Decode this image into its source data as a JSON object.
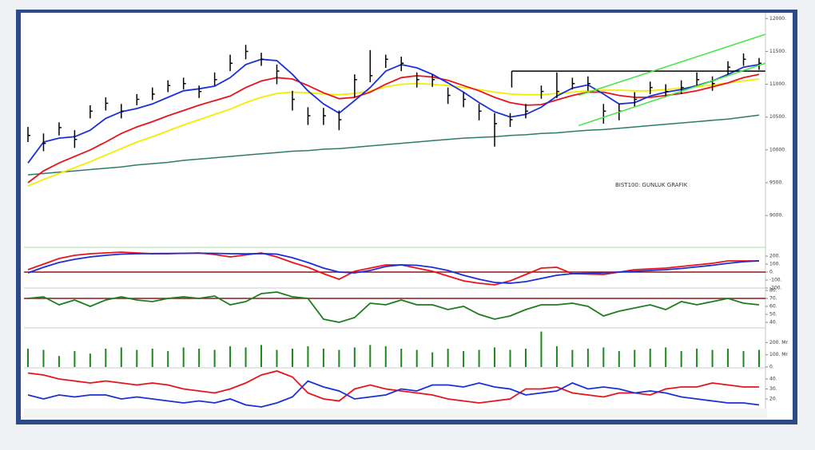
{
  "chart_data": [
    {
      "type": "ohlc",
      "annotation": "BIST100: GUNLUK GRAFIK",
      "ylim": [
        8540,
        12040
      ],
      "yticks": [
        {
          "value": 12000,
          "label": "12000."
        },
        {
          "value": 11500,
          "label": "11500."
        },
        {
          "value": 11000,
          "label": "11000."
        },
        {
          "value": 10500,
          "label": "10500."
        },
        {
          "value": 10000,
          "label": "10000."
        },
        {
          "value": 9500,
          "label": "9500."
        },
        {
          "value": 9000,
          "label": "9000."
        }
      ],
      "color": "#000000",
      "high": [
        10350,
        10250,
        10420,
        10300,
        10680,
        10800,
        10700,
        10850,
        10950,
        11060,
        11100,
        10980,
        11180,
        11450,
        11600,
        11480,
        11300,
        10900,
        10650,
        10640,
        10600,
        11150,
        11520,
        11450,
        11420,
        11180,
        11150,
        10950,
        10880,
        10700,
        10560,
        10560,
        10700,
        10980,
        11180,
        11100,
        11120,
        10700,
        10700,
        10880,
        11040,
        11000,
        11060,
        11180,
        11120,
        11350,
        11470,
        11400
      ],
      "low": [
        10120,
        9980,
        10220,
        10030,
        10480,
        10600,
        10480,
        10680,
        10760,
        10880,
        10920,
        10790,
        10980,
        11200,
        11380,
        11280,
        11000,
        10600,
        10380,
        10380,
        10300,
        10800,
        11030,
        11250,
        11200,
        10950,
        10960,
        10700,
        10650,
        10450,
        10050,
        10350,
        10480,
        10780,
        10790,
        10920,
        10900,
        10400,
        10450,
        10650,
        10850,
        10800,
        10850,
        10980,
        10900,
        11150,
        11280,
        11220
      ],
      "close": [
        10220,
        10100,
        10340,
        10160,
        10590,
        10710,
        10590,
        10770,
        10850,
        10980,
        11010,
        10890,
        11070,
        11320,
        11500,
        11380,
        11200,
        10770,
        10520,
        10520,
        10460,
        11070,
        11130,
        11380,
        11320,
        11070,
        11070,
        10830,
        10770,
        10590,
        10400,
        10460,
        10590,
        10890,
        10890,
        11010,
        11010,
        10590,
        10590,
        10770,
        10950,
        10890,
        10950,
        11070,
        11010,
        11260,
        11380,
        11320
      ],
      "series": [
        {
          "color": "#2e7a6e",
          "values": [
            9620,
            9640,
            9660,
            9680,
            9700,
            9720,
            9740,
            9770,
            9790,
            9810,
            9840,
            9860,
            9880,
            9900,
            9920,
            9940,
            9960,
            9980,
            9990,
            10010,
            10020,
            10040,
            10060,
            10080,
            10100,
            10120,
            10140,
            10160,
            10180,
            10190,
            10200,
            10220,
            10230,
            10250,
            10260,
            10280,
            10300,
            10310,
            10330,
            10350,
            10370,
            10390,
            10410,
            10430,
            10450,
            10470,
            10500,
            10530
          ]
        },
        {
          "color": "#f2ee00",
          "values": [
            9450,
            9550,
            9640,
            9730,
            9820,
            9920,
            10020,
            10120,
            10200,
            10290,
            10380,
            10460,
            10540,
            10620,
            10720,
            10800,
            10860,
            10880,
            10870,
            10850,
            10840,
            10860,
            10900,
            10960,
            11000,
            11010,
            11000,
            10980,
            10950,
            10920,
            10880,
            10850,
            10840,
            10840,
            10860,
            10880,
            10900,
            10910,
            10910,
            10900,
            10900,
            10920,
            10940,
            10960,
            10990,
            11020,
            11050,
            11080
          ]
        },
        {
          "color": "#e8141c",
          "values": [
            9500,
            9680,
            9800,
            9900,
            10000,
            10120,
            10250,
            10350,
            10430,
            10520,
            10600,
            10680,
            10750,
            10820,
            10950,
            11050,
            11100,
            11080,
            10980,
            10870,
            10780,
            10800,
            10880,
            11000,
            11100,
            11130,
            11110,
            11060,
            10980,
            10900,
            10800,
            10720,
            10680,
            10690,
            10760,
            10830,
            10880,
            10880,
            10830,
            10800,
            10800,
            10830,
            10860,
            10900,
            10960,
            11020,
            11100,
            11150
          ]
        },
        {
          "color": "#1a2fd6",
          "values": [
            9800,
            10120,
            10180,
            10200,
            10300,
            10480,
            10580,
            10630,
            10700,
            10800,
            10900,
            10930,
            10970,
            11100,
            11300,
            11380,
            11360,
            11150,
            10900,
            10700,
            10560,
            10750,
            10950,
            11200,
            11300,
            11250,
            11150,
            11020,
            10880,
            10720,
            10580,
            10500,
            10540,
            10650,
            10820,
            10940,
            10990,
            10850,
            10700,
            10720,
            10820,
            10880,
            10920,
            10980,
            11050,
            11150,
            11260,
            11300
          ]
        }
      ],
      "trendlines": [
        {
          "color": "#000000",
          "x": [
            31.1,
            47.4
          ],
          "values": [
            11200,
            11200
          ]
        },
        {
          "color": "#000000",
          "x": [
            31.1,
            31.1
          ],
          "values": [
            11200,
            10950
          ]
        },
        {
          "color": "#3ee83e",
          "x": [
            35.4,
            47.4
          ],
          "values": [
            10830,
            11760
          ]
        },
        {
          "color": "#3ee83e",
          "x": [
            35.4,
            47.4
          ],
          "values": [
            10370,
            11320
          ]
        }
      ]
    },
    {
      "type": "line",
      "ylim": [
        -200,
        290
      ],
      "yticks": [
        {
          "value": 200,
          "label": "200."
        },
        {
          "value": 100,
          "label": "100."
        },
        {
          "value": 0,
          "label": "0."
        },
        {
          "value": -100,
          "label": "-100."
        },
        {
          "value": -200,
          "label": "-200."
        }
      ],
      "reference_line": {
        "value": 0,
        "color": "#8b1a1a"
      },
      "series": [
        {
          "color": "#e8141c",
          "values": [
            30,
            100,
            170,
            210,
            230,
            240,
            250,
            240,
            230,
            230,
            235,
            240,
            220,
            190,
            215,
            240,
            190,
            120,
            60,
            -20,
            -90,
            10,
            50,
            90,
            90,
            50,
            10,
            -50,
            -110,
            -140,
            -160,
            -110,
            -30,
            50,
            60,
            -20,
            -25,
            -30,
            0,
            30,
            40,
            50,
            70,
            90,
            110,
            140,
            140,
            140
          ]
        },
        {
          "color": "#1a2fd6",
          "values": [
            -10,
            60,
            120,
            160,
            190,
            210,
            225,
            230,
            232,
            233,
            235,
            236,
            235,
            230,
            228,
            232,
            225,
            180,
            120,
            50,
            0,
            -10,
            20,
            70,
            90,
            85,
            60,
            20,
            -40,
            -90,
            -130,
            -140,
            -120,
            -80,
            -40,
            -20,
            -15,
            -10,
            0,
            10,
            20,
            30,
            45,
            65,
            85,
            110,
            130,
            140
          ]
        }
      ]
    },
    {
      "type": "line",
      "ylim": [
        34,
        82
      ],
      "yticks": [
        {
          "value": 80,
          "label": "80."
        },
        {
          "value": 70,
          "label": "70."
        },
        {
          "value": 60,
          "label": "60."
        },
        {
          "value": 50,
          "label": "50."
        },
        {
          "value": 40,
          "label": "40."
        }
      ],
      "reference_line": {
        "value": 70,
        "color": "#8b1a1a"
      },
      "series": [
        {
          "color": "#1d7d1d",
          "values": [
            70,
            72,
            62,
            68,
            60,
            68,
            72,
            68,
            66,
            70,
            72,
            70,
            73,
            62,
            66,
            76,
            78,
            72,
            70,
            44,
            40,
            46,
            64,
            62,
            68,
            62,
            62,
            56,
            60,
            50,
            44,
            48,
            56,
            62,
            62,
            64,
            60,
            48,
            54,
            58,
            62,
            56,
            66,
            62,
            66,
            70,
            64,
            62
          ]
        }
      ]
    },
    {
      "type": "bar",
      "ylim": [
        0,
        313
      ],
      "color": "#1a8a1a",
      "yticks": [
        {
          "value": 200,
          "label": "200. Mr"
        },
        {
          "value": 100,
          "label": "100. Mr"
        },
        {
          "value": 0,
          "label": "0."
        }
      ],
      "values": [
        150,
        140,
        90,
        130,
        110,
        150,
        160,
        140,
        150,
        130,
        160,
        150,
        140,
        170,
        160,
        180,
        140,
        150,
        170,
        150,
        140,
        160,
        180,
        170,
        150,
        140,
        120,
        150,
        130,
        140,
        160,
        140,
        150,
        290,
        170,
        140,
        150,
        160,
        130,
        140,
        150,
        160,
        130,
        150,
        140,
        150,
        130,
        140
      ]
    },
    {
      "type": "line",
      "ylim": [
        10.4,
        50.4
      ],
      "yticks": [
        {
          "value": 40,
          "label": "40."
        },
        {
          "value": 30,
          "label": "30."
        },
        {
          "value": 20,
          "label": "20."
        }
      ],
      "series": [
        {
          "color": "#e8141c",
          "values": [
            46,
            44,
            40,
            38,
            36,
            38,
            36,
            34,
            36,
            34,
            30,
            28,
            26,
            30,
            36,
            44,
            48,
            42,
            26,
            20,
            18,
            30,
            34,
            30,
            28,
            26,
            24,
            20,
            18,
            16,
            18,
            20,
            30,
            30,
            32,
            26,
            24,
            22,
            26,
            26,
            24,
            30,
            32,
            32,
            36,
            34,
            32,
            32
          ]
        },
        {
          "color": "#1a2fd6",
          "values": [
            24,
            20,
            24,
            22,
            24,
            24,
            20,
            22,
            20,
            18,
            16,
            18,
            16,
            20,
            14,
            12,
            16,
            22,
            38,
            32,
            28,
            20,
            22,
            24,
            30,
            28,
            34,
            34,
            32,
            36,
            32,
            30,
            24,
            26,
            28,
            36,
            30,
            32,
            30,
            26,
            28,
            26,
            22,
            20,
            18,
            16,
            16,
            14
          ]
        }
      ]
    }
  ]
}
